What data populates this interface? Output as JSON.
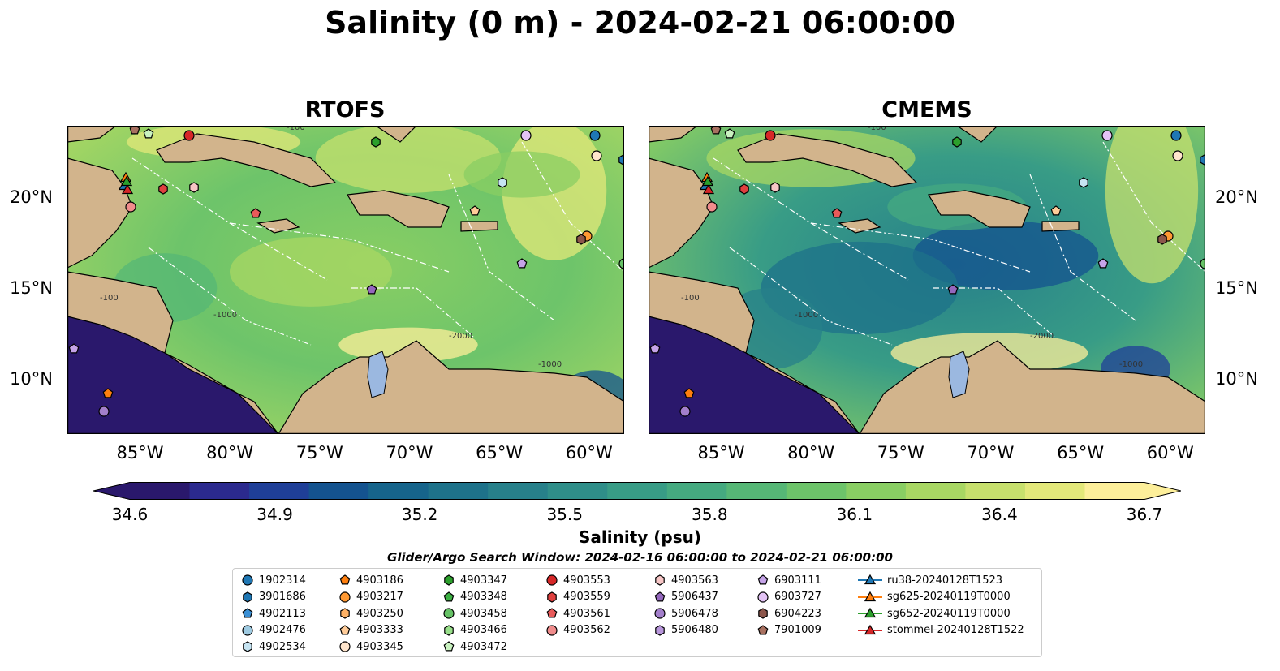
{
  "title": "Salinity (0 m) - 2024-02-21 06:00:00",
  "panels": [
    {
      "title": "RTOFS"
    },
    {
      "title": "CMEMS"
    }
  ],
  "map": {
    "lon_range": [
      -89,
      -58
    ],
    "lat_range": [
      7,
      24
    ],
    "lon_ticks": [
      "85°W",
      "80°W",
      "75°W",
      "70°W",
      "65°W",
      "60°W"
    ],
    "lat_ticks": [
      "20°N",
      "15°N",
      "10°N"
    ],
    "land_color": "#d2b48c",
    "contour_labels": [
      "-100",
      "-1000",
      "-2000",
      "-1000",
      "-100"
    ]
  },
  "colorbar": {
    "ticks": [
      "34.6",
      "34.9",
      "35.2",
      "35.5",
      "35.8",
      "36.1",
      "36.4",
      "36.7"
    ],
    "label": "Salinity (psu)",
    "range": [
      34.6,
      36.7
    ],
    "extend": "both",
    "colormap": "haline",
    "colors": [
      "#2a186c",
      "#2b2a8e",
      "#1f3f98",
      "#14538f",
      "#16648b",
      "#1e728a",
      "#27808a",
      "#2f8e89",
      "#389c86",
      "#45aa80",
      "#56b776",
      "#6dc46a",
      "#89ce63",
      "#a8d763",
      "#c7e06d",
      "#e3e87a",
      "#fdef9a"
    ]
  },
  "search_window": "Glider/Argo Search Window: 2024-02-16 06:00:00 to 2024-02-21 06:00:00",
  "legend": {
    "columns": [
      [
        {
          "label": "1902314",
          "marker": "circle",
          "color": "#1f77b4"
        },
        {
          "label": "3901686",
          "marker": "hexagon",
          "color": "#1f77b4"
        },
        {
          "label": "4902113",
          "marker": "pentagon",
          "color": "#3a8fd4"
        },
        {
          "label": "4902476",
          "marker": "circle",
          "color": "#9ecae1"
        },
        {
          "label": "4902534",
          "marker": "hexagon",
          "color": "#c6e4f2"
        }
      ],
      [
        {
          "label": "4903186",
          "marker": "pentagon",
          "color": "#ff7f0e"
        },
        {
          "label": "4903217",
          "marker": "circle",
          "color": "#ff9933"
        },
        {
          "label": "4903250",
          "marker": "hexagon",
          "color": "#ffb266"
        },
        {
          "label": "4903333",
          "marker": "pentagon",
          "color": "#ffcc99"
        },
        {
          "label": "4903345",
          "marker": "circle",
          "color": "#ffe5cc"
        }
      ],
      [
        {
          "label": "4903347",
          "marker": "hexagon",
          "color": "#2ca02c"
        },
        {
          "label": "4903348",
          "marker": "pentagon",
          "color": "#3cb043"
        },
        {
          "label": "4903458",
          "marker": "circle",
          "color": "#66c266"
        },
        {
          "label": "4903466",
          "marker": "hexagon",
          "color": "#98df8a"
        },
        {
          "label": "4903472",
          "marker": "pentagon",
          "color": "#c9f2c0"
        }
      ],
      [
        {
          "label": "4903553",
          "marker": "circle",
          "color": "#d62728"
        },
        {
          "label": "4903559",
          "marker": "hexagon",
          "color": "#e0403f"
        },
        {
          "label": "4903561",
          "marker": "pentagon",
          "color": "#e85a5a"
        },
        {
          "label": "4903562",
          "marker": "circle",
          "color": "#f08c8c"
        }
      ],
      [
        {
          "label": "4903563",
          "marker": "hexagon",
          "color": "#f7c6c6"
        },
        {
          "label": "5906437",
          "marker": "pentagon",
          "color": "#9467bd"
        },
        {
          "label": "5906478",
          "marker": "circle",
          "color": "#a37fcb"
        },
        {
          "label": "5906480",
          "marker": "hexagon",
          "color": "#b896db"
        }
      ],
      [
        {
          "label": "6903111",
          "marker": "pentagon",
          "color": "#c5a3e8"
        },
        {
          "label": "6903727",
          "marker": "circle",
          "color": "#e3c3f5"
        },
        {
          "label": "6904223",
          "marker": "hexagon",
          "color": "#8c564b"
        },
        {
          "label": "7901009",
          "marker": "pentagon",
          "color": "#a87060"
        }
      ],
      [
        {
          "label": "ru38-20240128T1523",
          "marker": "triangle-line",
          "color": "#1f77b4"
        },
        {
          "label": "sg625-20240119T0000",
          "marker": "triangle-line",
          "color": "#ff7f0e"
        },
        {
          "label": "sg652-20240119T0000",
          "marker": "triangle-line",
          "color": "#2ca02c"
        },
        {
          "label": "stommel-20240128T1522",
          "marker": "triangle-line",
          "color": "#d62728"
        }
      ]
    ]
  }
}
